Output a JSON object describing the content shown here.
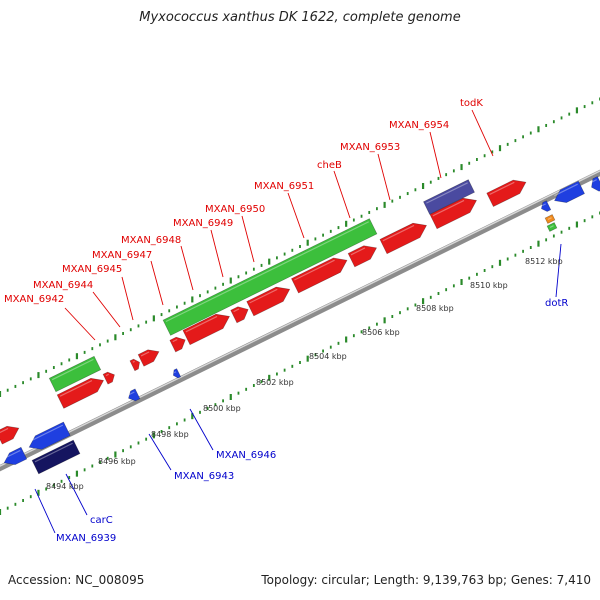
{
  "title": "Myxococcus xanthus DK 1622, complete genome",
  "footer": {
    "accession": "Accession: NC_008095",
    "topology": "Topology: circular; Length: 9,139,763 bp; Genes: 7,410"
  },
  "colors": {
    "forward_gene": "#e41a1a",
    "reverse_gene": "#1f3fe0",
    "rna_green": "#3cbf3c",
    "dark_navy": "#151560",
    "purple": "#4a4aa0",
    "orange": "#f08a1c",
    "label_red": "#e00000",
    "label_blue": "#0000cc",
    "backbone": "#8c8c8c",
    "tick": "#2a8a2a"
  },
  "scale_labels": [
    "8494 kbp",
    "8496 kbp",
    "8498 kbp",
    "8500 kbp",
    "8502 kbp",
    "8504 kbp",
    "8506 kbp",
    "8508 kbp",
    "8510 kbp",
    "8512 kbp"
  ],
  "gene_labels_top": [
    "MXAN_6942",
    "MXAN_6944",
    "MXAN_6945",
    "MXAN_6947",
    "MXAN_6948",
    "MXAN_6949",
    "MXAN_6950",
    "MXAN_6951",
    "cheB",
    "MXAN_6953",
    "MXAN_6954",
    "todK"
  ],
  "gene_labels_bottom": [
    "MXAN_6939",
    "carC",
    "MXAN_6943",
    "MXAN_6946",
    "dotR"
  ]
}
